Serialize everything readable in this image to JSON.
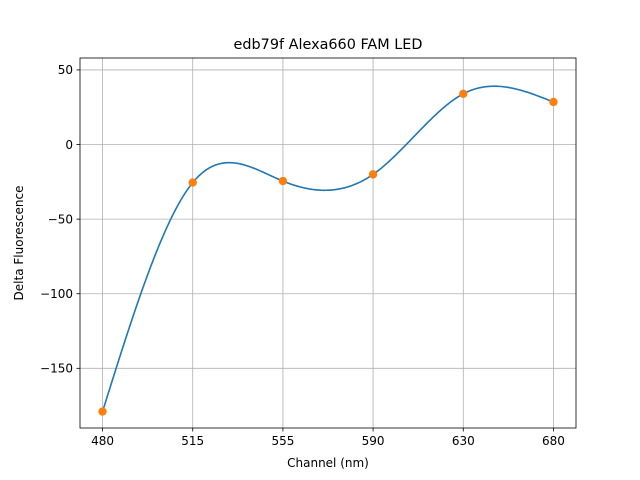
{
  "chart_data": {
    "type": "line",
    "title": "edb79f Alexa660 FAM LED",
    "xlabel": "Channel (nm)",
    "ylabel": "Delta Fluorescence",
    "categories": [
      "480",
      "515",
      "555",
      "590",
      "630",
      "680"
    ],
    "x": [
      0,
      1,
      2,
      3,
      4,
      5
    ],
    "y_ticks": [
      50,
      0,
      -50,
      -100,
      -150
    ],
    "y_tick_labels": [
      "50",
      "0",
      "−50",
      "−100",
      "−150"
    ],
    "ylim": [
      -190,
      58
    ],
    "grid": true,
    "series": [
      {
        "type": "markers",
        "color": "#ff7f0e",
        "values": [
          -179,
          -25.5,
          -24.5,
          -20,
          34,
          28.5
        ]
      },
      {
        "type": "smooth-line",
        "color": "#1f77b4",
        "values": [
          -179,
          -25.5,
          -24.5,
          -20,
          34,
          28.5
        ]
      }
    ]
  }
}
